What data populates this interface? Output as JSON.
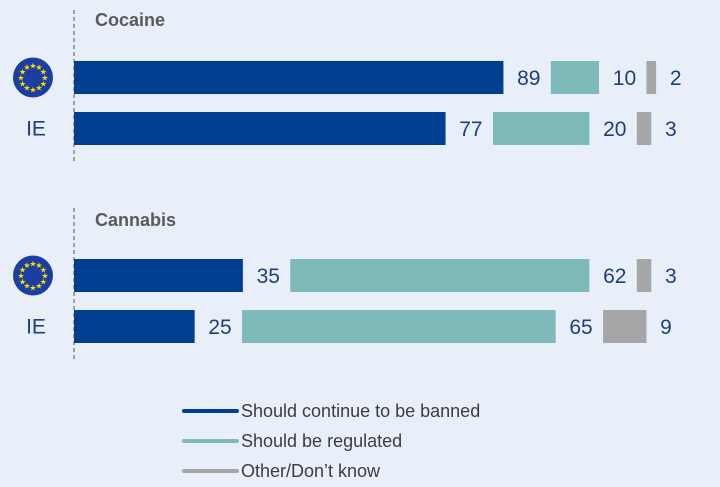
{
  "chart_data": {
    "type": "bar",
    "orientation": "horizontal",
    "stacked": true,
    "xlim": [
      0,
      100
    ],
    "grid": false,
    "legend_position": "bottom-center",
    "colors": {
      "banned": "#003f8f",
      "regulated": "#7fbabb",
      "other": "#a6a6a6",
      "label_text": "#1e3f7c",
      "group_title": "#5a5a5a",
      "eu_flag": "#1b3fa0",
      "eu_star": "#ffdd00"
    },
    "groups": [
      {
        "title": "Cocaine",
        "rows": [
          {
            "label": "EU",
            "label_icon": "eu-flag-icon",
            "values": [
              89,
              10,
              2
            ]
          },
          {
            "label": "IE",
            "label_icon": "",
            "values": [
              77,
              20,
              3
            ]
          }
        ]
      },
      {
        "title": "Cannabis",
        "rows": [
          {
            "label": "EU",
            "label_icon": "eu-flag-icon",
            "values": [
              35,
              62,
              3
            ]
          },
          {
            "label": "IE",
            "label_icon": "",
            "values": [
              25,
              65,
              9
            ]
          }
        ]
      }
    ],
    "series": [
      {
        "name": "Should continue to be banned",
        "color": "#003f8f"
      },
      {
        "name": "Should be regulated",
        "color": "#7fbabb"
      },
      {
        "name": "Other/Don’t know",
        "color": "#a6a6a6"
      }
    ]
  }
}
